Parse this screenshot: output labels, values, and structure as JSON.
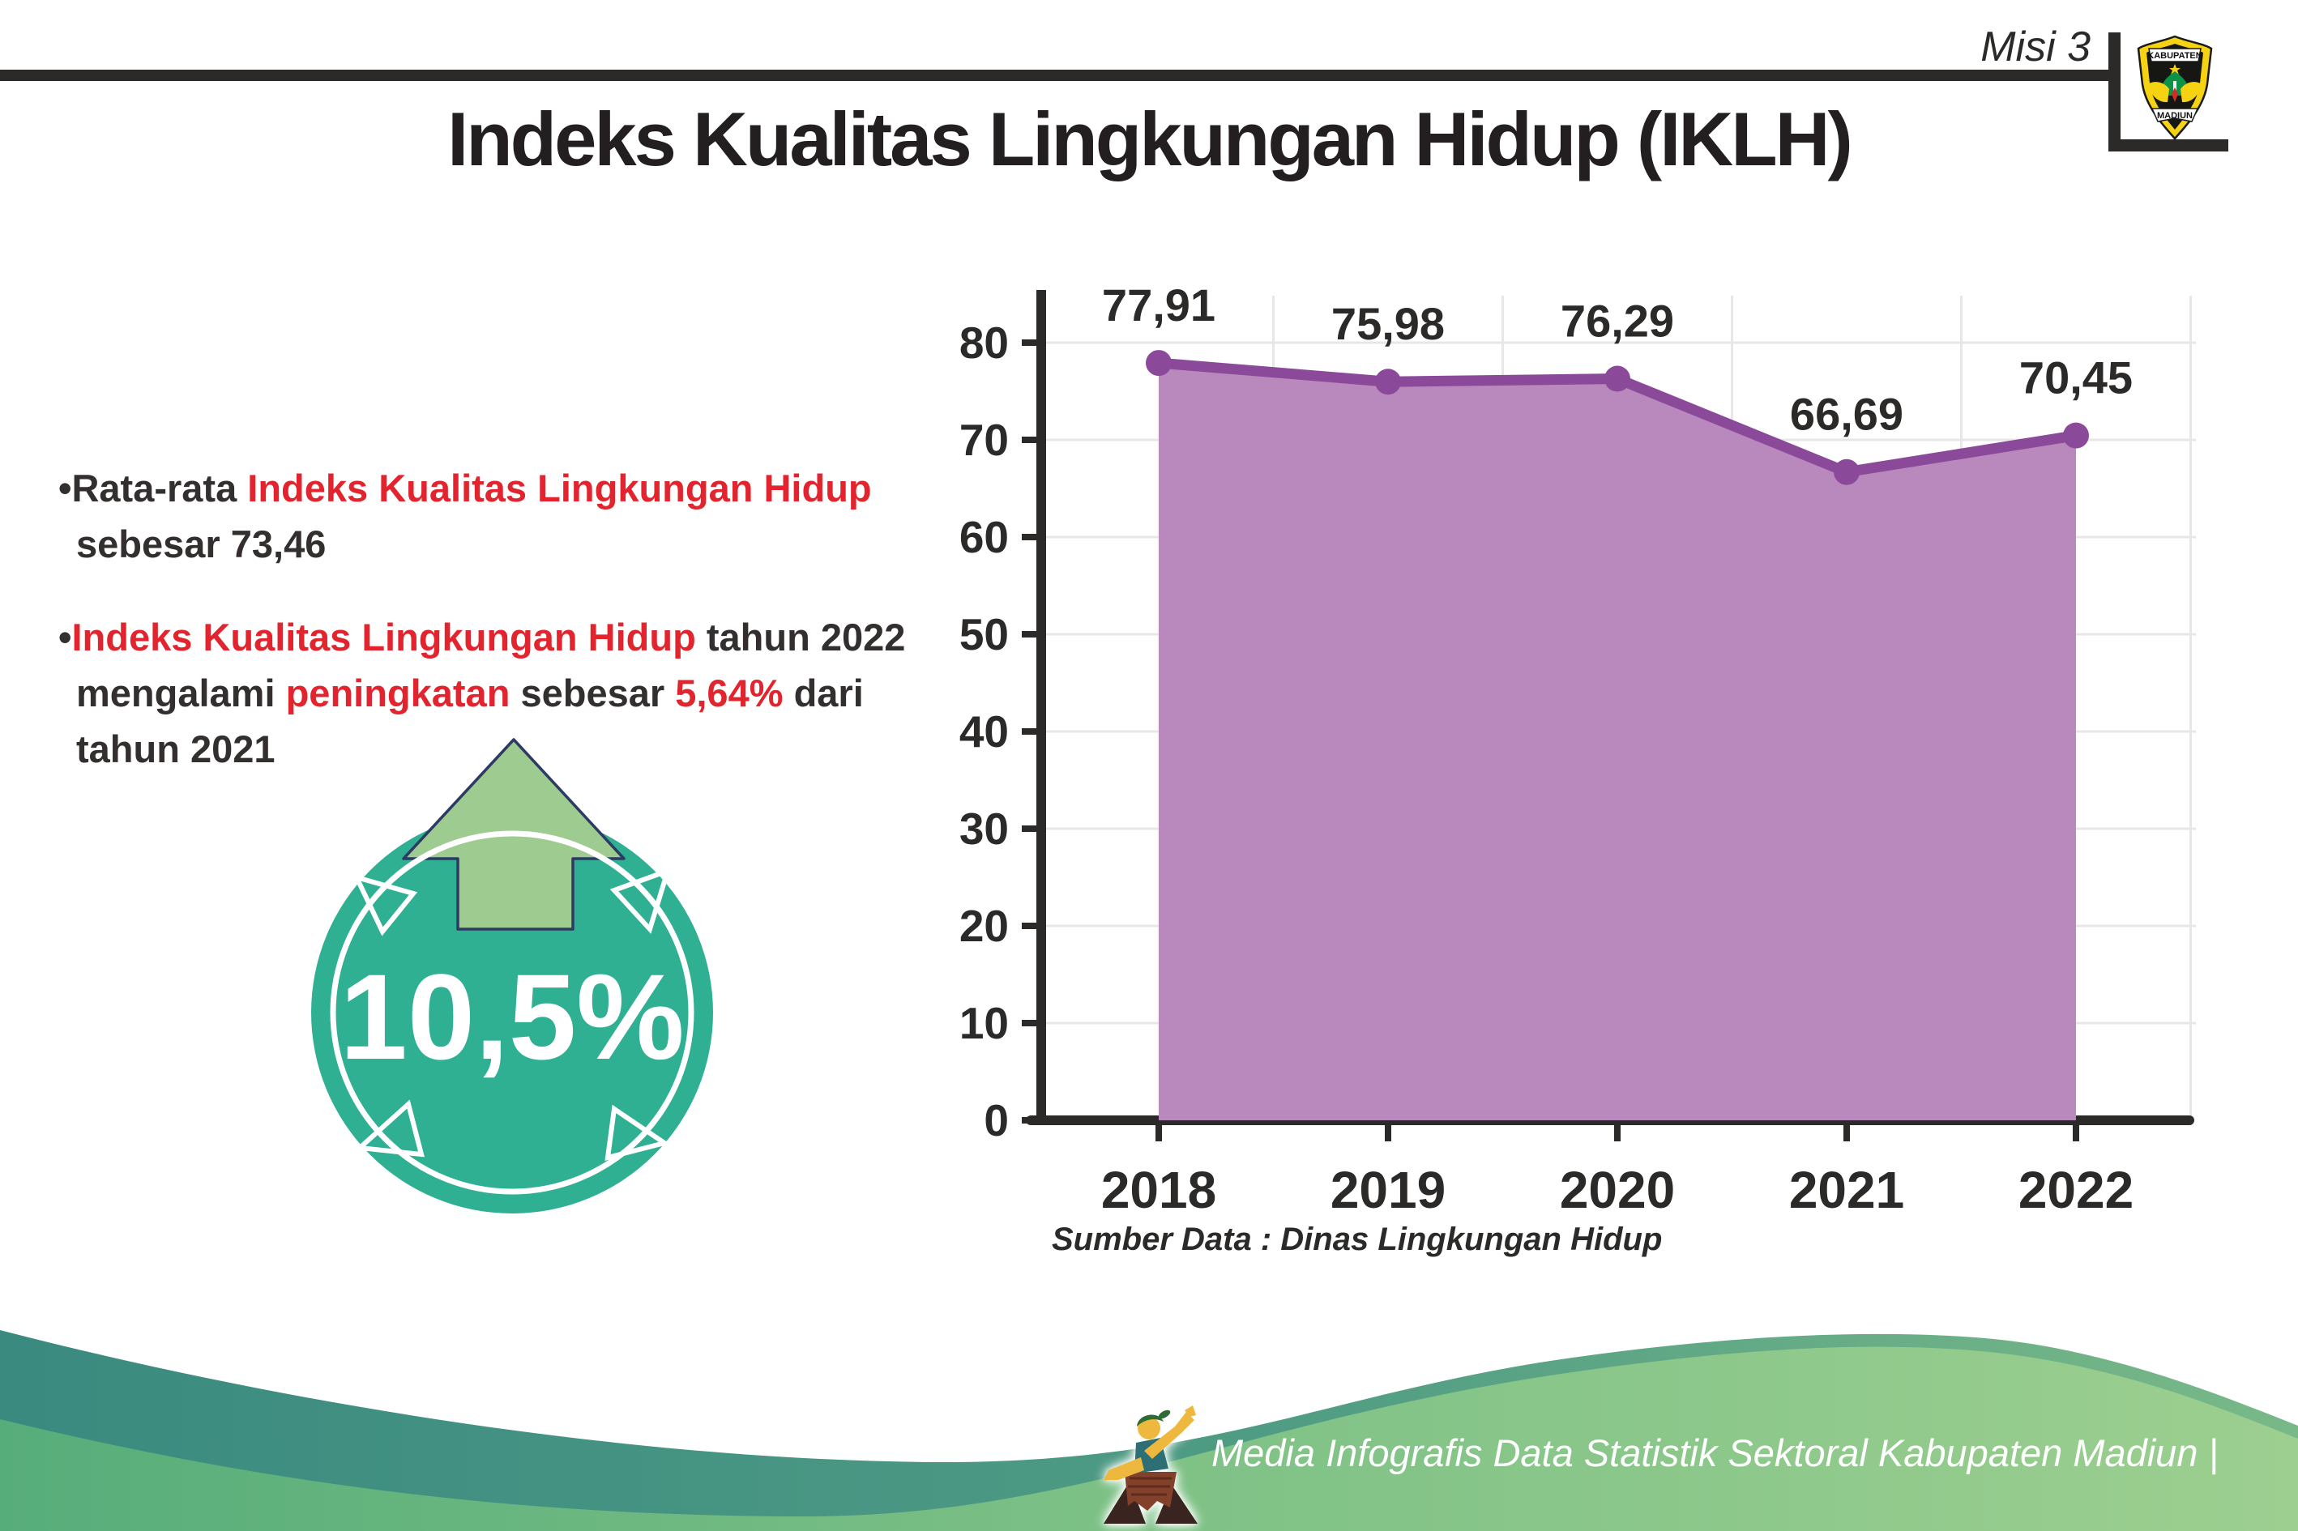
{
  "header": {
    "misi_label": "Misi 3",
    "title": "Indeks Kualitas Lingkungan Hidup (IKLH)",
    "logo": {
      "top_text": "KABUPATEN",
      "bottom_text": "MADIUN"
    }
  },
  "bullets": {
    "marker": "•",
    "b1": {
      "lines": [
        [
          {
            "text": "Rata-rata ",
            "red": false
          },
          {
            "text": "Indeks Kualitas Lingkungan Hidup",
            "red": true
          }
        ],
        [
          {
            "text": "sebesar 73,46",
            "red": false
          }
        ]
      ]
    },
    "b2": {
      "lines": [
        [
          {
            "text": "Indeks Kualitas Lingkungan Hidup",
            "red": true
          },
          {
            "text": " tahun 2022",
            "red": false
          }
        ],
        [
          {
            "text": "mengalami ",
            "red": false
          },
          {
            "text": "peningkatan",
            "red": true
          },
          {
            "text": " sebesar ",
            "red": false
          },
          {
            "text": "5,64%",
            "red": true
          },
          {
            "text": " dari",
            "red": false
          }
        ],
        [
          {
            "text": "tahun 2021",
            "red": false
          }
        ]
      ]
    }
  },
  "badge": {
    "value": "10,5%",
    "circle_color": "#2fb093",
    "arrow_color": "#9ecb8f"
  },
  "chart_data": {
    "type": "area",
    "title": "",
    "categories": [
      "2018",
      "2019",
      "2020",
      "2021",
      "2022"
    ],
    "values": [
      77.91,
      75.98,
      76.29,
      66.69,
      70.45
    ],
    "value_labels": [
      "77,91",
      "75,98",
      "76,29",
      "66,69",
      "70,45"
    ],
    "xlabel": "",
    "ylabel": "",
    "ylim": [
      0,
      80
    ],
    "ytick_step": 10,
    "grid": true,
    "legend": "none",
    "area_color": "#b989be",
    "line_color": "#8a4a99",
    "axis_color": "#2b2a29",
    "grid_color": "#e7e7e7"
  },
  "source_note": "Sumber Data : Dinas Lingkungan Hidup",
  "footer": {
    "credit": "Media Infografis Data Statistik Sektoral Kabupaten Madiun |"
  },
  "colors": {
    "accent_red": "#e2242e",
    "text_dark": "#2b2a29"
  }
}
